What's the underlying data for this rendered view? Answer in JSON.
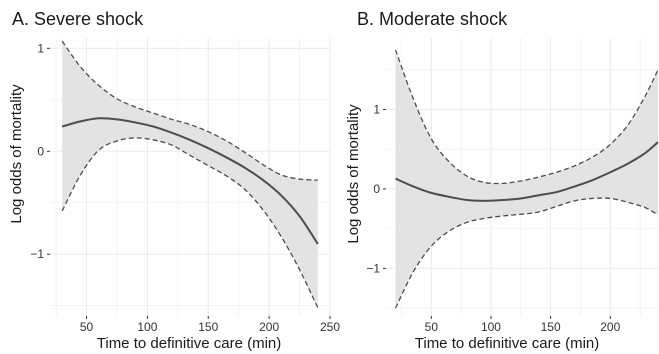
{
  "chart_data": [
    {
      "type": "line",
      "title": "A. Severe shock",
      "xlabel": "Time to definitive care (min)",
      "ylabel": "Log odds of mortality",
      "xlim": [
        20,
        250
      ],
      "ylim": [
        -1.6,
        1.1
      ],
      "xticks": [
        50,
        100,
        150,
        200,
        250
      ],
      "xtick_labels": [
        "50",
        "100",
        "150",
        "200",
        "250"
      ],
      "yticks": [
        -1,
        0,
        1
      ],
      "ytick_labels": [
        "−1",
        "0",
        "1"
      ],
      "grid": true,
      "series": [
        {
          "role": "estimate",
          "style": "solid",
          "x": [
            30,
            45,
            60,
            75,
            90,
            105,
            120,
            135,
            150,
            165,
            180,
            195,
            210,
            225,
            240
          ],
          "y": [
            0.24,
            0.29,
            0.32,
            0.31,
            0.28,
            0.24,
            0.18,
            0.11,
            0.03,
            -0.06,
            -0.16,
            -0.28,
            -0.43,
            -0.63,
            -0.9
          ]
        },
        {
          "role": "upper",
          "style": "dashed",
          "x": [
            30,
            45,
            60,
            75,
            90,
            105,
            120,
            135,
            150,
            165,
            180,
            195,
            210,
            225,
            240
          ],
          "y": [
            1.07,
            0.82,
            0.64,
            0.51,
            0.43,
            0.37,
            0.31,
            0.26,
            0.19,
            0.1,
            -0.01,
            -0.13,
            -0.23,
            -0.27,
            -0.28
          ]
        },
        {
          "role": "lower",
          "style": "dashed",
          "x": [
            30,
            45,
            60,
            75,
            90,
            105,
            120,
            135,
            150,
            165,
            180,
            195,
            210,
            225,
            240
          ],
          "y": [
            -0.58,
            -0.23,
            0.01,
            0.1,
            0.13,
            0.11,
            0.06,
            -0.04,
            -0.14,
            -0.24,
            -0.37,
            -0.57,
            -0.83,
            -1.15,
            -1.52
          ]
        }
      ]
    },
    {
      "type": "line",
      "title": "B. Moderate shock",
      "xlabel": "Time to definitive care (min)",
      "ylabel": "Log odds of mortality",
      "xlim": [
        12,
        240
      ],
      "ylim": [
        -1.6,
        1.9
      ],
      "xticks": [
        50,
        100,
        150,
        200
      ],
      "xtick_labels": [
        "50",
        "100",
        "150",
        "200"
      ],
      "yticks": [
        -1,
        0,
        1
      ],
      "ytick_labels": [
        "−1",
        "0",
        "1"
      ],
      "grid": true,
      "series": [
        {
          "role": "estimate",
          "style": "solid",
          "x": [
            20,
            35,
            50,
            65,
            80,
            95,
            110,
            125,
            140,
            155,
            170,
            185,
            200,
            215,
            230,
            240
          ],
          "y": [
            0.13,
            0.03,
            -0.05,
            -0.1,
            -0.14,
            -0.15,
            -0.14,
            -0.12,
            -0.08,
            -0.04,
            0.03,
            0.11,
            0.21,
            0.32,
            0.46,
            0.59
          ]
        },
        {
          "role": "upper",
          "style": "dashed",
          "x": [
            20,
            35,
            50,
            65,
            80,
            95,
            110,
            125,
            140,
            155,
            170,
            185,
            200,
            215,
            230,
            240
          ],
          "y": [
            1.75,
            1.13,
            0.63,
            0.34,
            0.16,
            0.08,
            0.07,
            0.1,
            0.15,
            0.21,
            0.29,
            0.4,
            0.56,
            0.81,
            1.19,
            1.5
          ]
        },
        {
          "role": "lower",
          "style": "dashed",
          "x": [
            20,
            35,
            50,
            65,
            80,
            95,
            110,
            125,
            140,
            155,
            170,
            185,
            200,
            215,
            230,
            240
          ],
          "y": [
            -1.5,
            -1.04,
            -0.72,
            -0.53,
            -0.42,
            -0.37,
            -0.34,
            -0.32,
            -0.29,
            -0.22,
            -0.15,
            -0.12,
            -0.12,
            -0.17,
            -0.24,
            -0.33
          ]
        }
      ]
    }
  ],
  "colors": {
    "panel_background": "#ffffff",
    "gridline": "#ebebeb",
    "ribbon": "#e3e3e3",
    "line": "#4d4d4d",
    "text": "#1a1a1a"
  }
}
